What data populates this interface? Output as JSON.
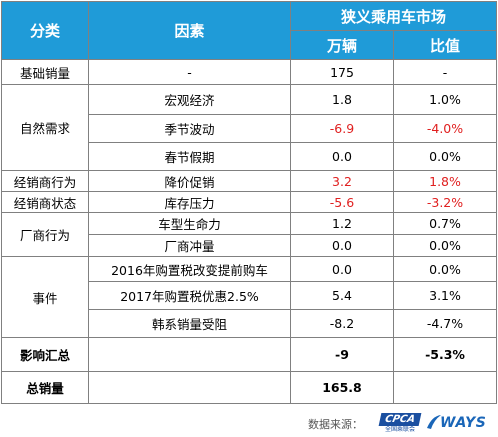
{
  "header": {
    "col_category": "分类",
    "col_factor": "因素",
    "col_market": "狭义乘用车市场",
    "col_units": "万辆",
    "col_ratio": "比值"
  },
  "rows": {
    "base": {
      "category": "基础销量",
      "factor": "-",
      "units": "175",
      "ratio": "-"
    },
    "natural": {
      "category": "自然需求",
      "macro": {
        "factor": "宏观经济",
        "units": "1.8",
        "ratio": "1.0%"
      },
      "seasonal": {
        "factor": "季节波动",
        "units": "-6.9",
        "ratio": "-4.0%"
      },
      "holiday": {
        "factor": "春节假期",
        "units": "0.0",
        "ratio": "0.0%"
      }
    },
    "dealer_behavior": {
      "category": "经销商行为",
      "factor": "降价促销",
      "units": "3.2",
      "ratio": "1.8%"
    },
    "dealer_state": {
      "category": "经销商状态",
      "factor": "库存压力",
      "units": "-5.6",
      "ratio": "-3.2%"
    },
    "maker": {
      "category": "厂商行为",
      "lifecycle": {
        "factor": "车型生命力",
        "units": "1.2",
        "ratio": "0.7%"
      },
      "push": {
        "factor": "厂商冲量",
        "units": "0.0",
        "ratio": "0.0%"
      }
    },
    "events": {
      "category": "事件",
      "tax2016": {
        "factor": "2016年购置税改变提前购车",
        "units": "0.0",
        "ratio": "0.0%"
      },
      "tax2017": {
        "factor": "2017年购置税优惠2.5%",
        "units": "5.4",
        "ratio": "3.1%"
      },
      "korea": {
        "factor": "韩系销量受阻",
        "units": "-8.2",
        "ratio": "-4.7%"
      }
    },
    "impact": {
      "category": "影响汇总",
      "units": "-9",
      "ratio": "-5.3%"
    },
    "total": {
      "category": "总销量",
      "units": "165.8"
    }
  },
  "footer": {
    "source_label": "数据来源：",
    "cpca_logo": "CPCA",
    "cpca_sub": "全国乘联会",
    "ways_logo": "WAYS"
  },
  "colors": {
    "header_bg": "#1f9bd8",
    "negative": "#e02020",
    "border": "#808080"
  }
}
